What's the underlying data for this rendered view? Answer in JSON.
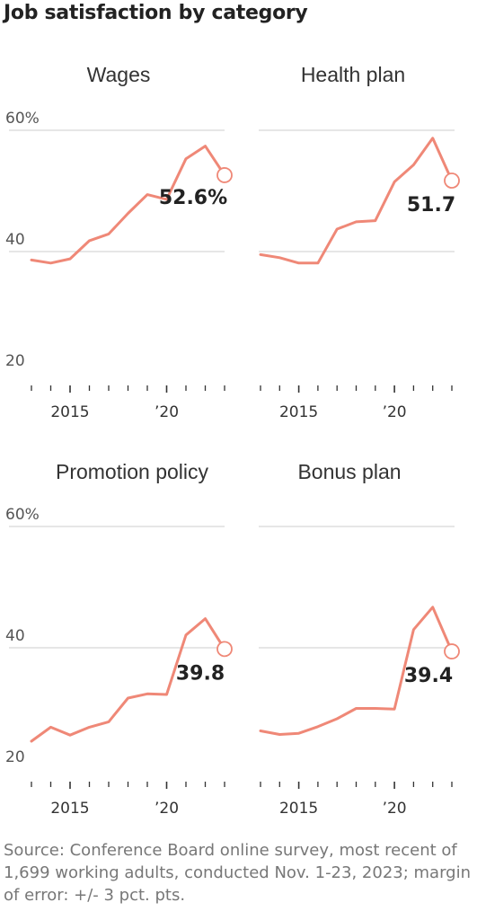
{
  "title": "Job satisfaction by category",
  "source": "Source: Conference Board online survey, most recent of 1,699 working adults, conducted Nov. 1-23, 2023; margin of error: +/- 3 pct. pts.",
  "colors": {
    "line": "#ef8877",
    "grid": "#cccccc",
    "axis": "#333333"
  },
  "chart_data": [
    {
      "type": "line",
      "title": "Wages",
      "x": [
        2013,
        2014,
        2015,
        2016,
        2017,
        2018,
        2019,
        2020,
        2021,
        2022,
        2023
      ],
      "series": [
        {
          "values": [
            38.6,
            38.1,
            38.8,
            41.8,
            42.9,
            46.3,
            49.4,
            48.6,
            55.3,
            57.4,
            52.6
          ]
        }
      ],
      "end_label": "52.6%",
      "yticks": [
        "60%",
        "40",
        "20"
      ],
      "ytick_values": [
        60,
        40,
        20
      ],
      "xticks": [
        "2015",
        "’20"
      ],
      "xtick_values": [
        2015,
        2020
      ],
      "xlim": [
        2013,
        2023
      ],
      "ylim": [
        20,
        60
      ],
      "grid": true
    },
    {
      "type": "line",
      "title": "Health plan",
      "x": [
        2013,
        2014,
        2015,
        2016,
        2017,
        2018,
        2019,
        2020,
        2021,
        2022,
        2023
      ],
      "series": [
        {
          "values": [
            39.5,
            39.0,
            38.1,
            38.1,
            43.7,
            44.9,
            45.1,
            51.5,
            54.3,
            58.7,
            51.7
          ]
        }
      ],
      "end_label": "51.7",
      "xticks": [
        "2015",
        "’20"
      ],
      "xtick_values": [
        2015,
        2020
      ],
      "xlim": [
        2013,
        2023
      ],
      "ylim": [
        20,
        60
      ],
      "grid": true
    },
    {
      "type": "line",
      "title": "Promotion policy",
      "x": [
        2013,
        2014,
        2015,
        2016,
        2017,
        2018,
        2019,
        2020,
        2021,
        2022,
        2023
      ],
      "series": [
        {
          "values": [
            24.6,
            26.9,
            25.6,
            26.9,
            27.8,
            31.7,
            32.4,
            32.3,
            42.1,
            44.8,
            39.8
          ]
        }
      ],
      "end_label": "39.8",
      "yticks": [
        "60%",
        "40",
        "20"
      ],
      "ytick_values": [
        60,
        40,
        20
      ],
      "xticks": [
        "2015",
        "’20"
      ],
      "xtick_values": [
        2015,
        2020
      ],
      "xlim": [
        2013,
        2023
      ],
      "ylim": [
        20,
        60
      ],
      "grid": true
    },
    {
      "type": "line",
      "title": "Bonus plan",
      "x": [
        2013,
        2014,
        2015,
        2016,
        2017,
        2018,
        2019,
        2020,
        2021,
        2022,
        2023
      ],
      "series": [
        {
          "values": [
            26.3,
            25.7,
            25.9,
            27.0,
            28.3,
            30.0,
            30.0,
            29.9,
            43.0,
            46.7,
            39.4
          ]
        }
      ],
      "end_label": "39.4",
      "xticks": [
        "2015",
        "’20"
      ],
      "xtick_values": [
        2015,
        2020
      ],
      "xlim": [
        2013,
        2023
      ],
      "ylim": [
        20,
        60
      ],
      "grid": true
    }
  ]
}
